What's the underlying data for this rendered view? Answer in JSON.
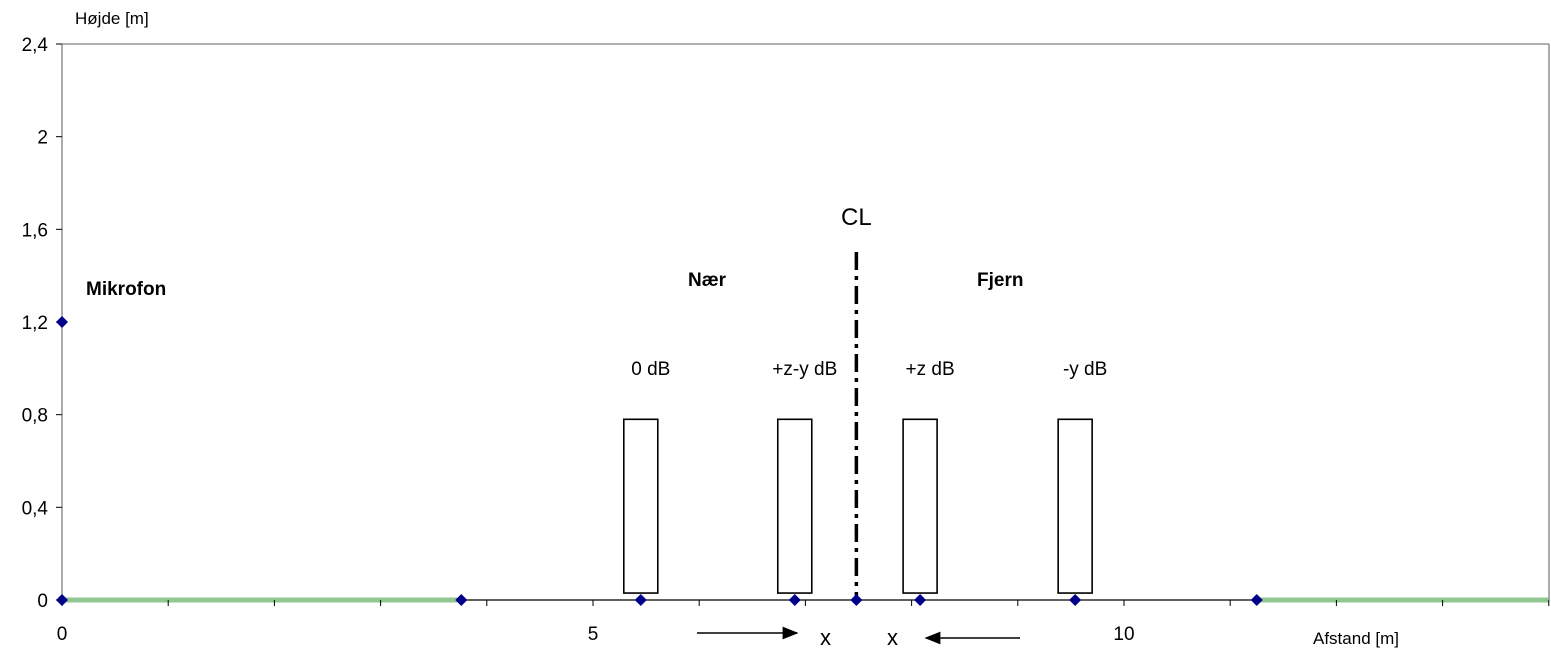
{
  "chart_data": {
    "type": "scatter",
    "ylabel": "Højde [m]",
    "xlabel": "Afstand [m]",
    "xlim": [
      0,
      14
    ],
    "ylim": [
      0,
      2.4
    ],
    "x_ticks": [
      {
        "value": 0,
        "label": "0"
      },
      {
        "value": 5,
        "label": "5"
      },
      {
        "value": 10,
        "label": "10"
      }
    ],
    "y_ticks": [
      {
        "value": 0,
        "label": "0"
      },
      {
        "value": 0.4,
        "label": "0,4"
      },
      {
        "value": 0.8,
        "label": "0,8"
      },
      {
        "value": 1.2,
        "label": "1,2"
      },
      {
        "value": 1.6,
        "label": "1,6"
      },
      {
        "value": 2.0,
        "label": "2"
      },
      {
        "value": 2.4,
        "label": "2,4"
      }
    ],
    "points": [
      {
        "x": 0,
        "y": 0
      },
      {
        "x": 0,
        "y": 1.2
      },
      {
        "x": 3.76,
        "y": 0
      },
      {
        "x": 5.45,
        "y": 0
      },
      {
        "x": 6.9,
        "y": 0
      },
      {
        "x": 7.48,
        "y": 0
      },
      {
        "x": 8.08,
        "y": 0
      },
      {
        "x": 9.54,
        "y": 0
      },
      {
        "x": 11.25,
        "y": 0
      }
    ],
    "ground_segments": [
      {
        "x0": 0,
        "x1": 3.76
      },
      {
        "x0": 11.25,
        "x1": 14
      }
    ],
    "vehicles": [
      {
        "x": 5.45,
        "label": "0 dB",
        "height": 0.78
      },
      {
        "x": 6.9,
        "label": "+z-y dB",
        "height": 0.78
      },
      {
        "x": 8.08,
        "label": "+z dB",
        "height": 0.78
      },
      {
        "x": 9.54,
        "label": "-y dB",
        "height": 0.78
      }
    ],
    "centerline": {
      "x": 7.48,
      "label": "CL"
    },
    "annotations": {
      "microphone": "Mikrofon",
      "near": "Nær",
      "far": "Fjern",
      "x_left": "x",
      "x_right": "x"
    },
    "colors": {
      "marker": "#00008b",
      "ground": "#90c890",
      "axis": "#000000"
    },
    "grid": false
  }
}
